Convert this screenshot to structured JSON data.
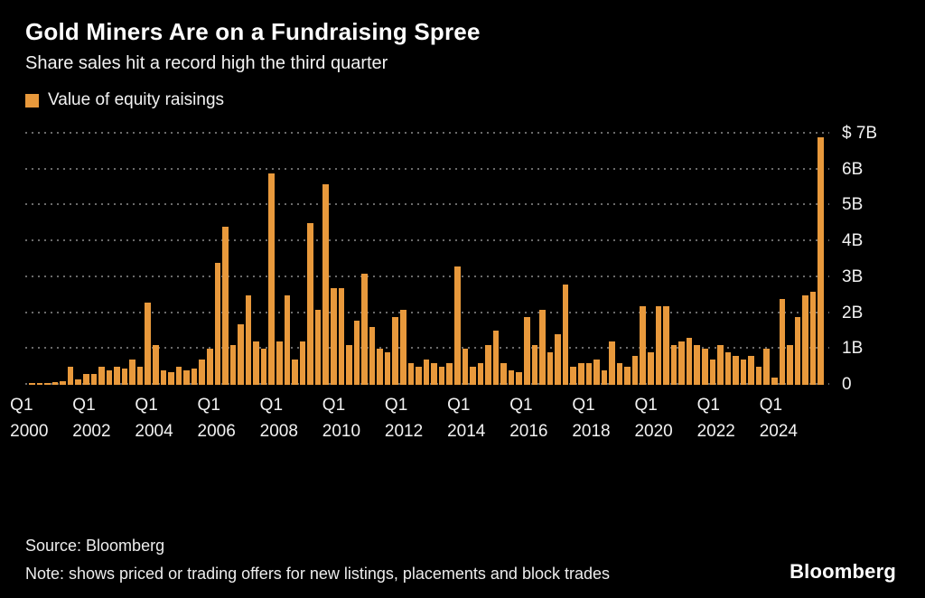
{
  "header": {
    "title": "Gold Miners Are on a Fundraising Spree",
    "subtitle": "Share sales hit a record high the third quarter"
  },
  "legend": {
    "label": "Value of equity raisings",
    "color": "#E8993C"
  },
  "chart_data": {
    "type": "bar",
    "title": "Value of equity raisings",
    "xlabel": "",
    "ylabel": "$B",
    "ylim": [
      0,
      7
    ],
    "grid": "horizontal-dotted",
    "legend_position": "top-left",
    "bar_color": "#E8993C",
    "start_quarter": "Q1 2000",
    "end_quarter": "Q3 2025",
    "values": [
      0.05,
      0.05,
      0.06,
      0.08,
      0.1,
      0.5,
      0.15,
      0.3,
      0.3,
      0.5,
      0.4,
      0.5,
      0.45,
      0.7,
      0.5,
      2.3,
      1.1,
      0.4,
      0.35,
      0.5,
      0.4,
      0.45,
      0.7,
      1.0,
      3.4,
      4.4,
      1.1,
      1.7,
      2.5,
      1.2,
      1.0,
      5.9,
      1.2,
      2.5,
      0.7,
      1.2,
      4.5,
      2.1,
      5.6,
      2.7,
      2.7,
      1.1,
      1.8,
      3.1,
      1.6,
      1.0,
      0.9,
      1.9,
      2.1,
      0.6,
      0.5,
      0.7,
      0.6,
      0.5,
      0.6,
      3.3,
      1.0,
      0.5,
      0.6,
      1.1,
      1.5,
      0.6,
      0.4,
      0.35,
      1.9,
      1.1,
      2.1,
      0.9,
      1.4,
      2.8,
      0.5,
      0.6,
      0.6,
      0.7,
      0.4,
      1.2,
      0.6,
      0.5,
      0.8,
      2.2,
      0.9,
      2.2,
      2.2,
      1.1,
      1.2,
      1.3,
      1.1,
      1.0,
      0.7,
      1.1,
      0.9,
      0.8,
      0.7,
      0.8,
      0.5,
      1.0,
      0.2,
      2.4,
      1.1,
      1.9,
      2.5,
      2.6,
      6.9
    ],
    "y_ticks": [
      {
        "value": 7,
        "label": "$ 7B"
      },
      {
        "value": 6,
        "label": "6B"
      },
      {
        "value": 5,
        "label": "5B"
      },
      {
        "value": 4,
        "label": "4B"
      },
      {
        "value": 3,
        "label": "3B"
      },
      {
        "value": 2,
        "label": "2B"
      },
      {
        "value": 1,
        "label": "1B"
      },
      {
        "value": 0,
        "label": "0"
      }
    ],
    "x_ticks": [
      {
        "index": 0,
        "quarter": "Q1",
        "year": "2000"
      },
      {
        "index": 8,
        "quarter": "Q1",
        "year": "2002"
      },
      {
        "index": 16,
        "quarter": "Q1",
        "year": "2004"
      },
      {
        "index": 24,
        "quarter": "Q1",
        "year": "2006"
      },
      {
        "index": 32,
        "quarter": "Q1",
        "year": "2008"
      },
      {
        "index": 40,
        "quarter": "Q1",
        "year": "2010"
      },
      {
        "index": 48,
        "quarter": "Q1",
        "year": "2012"
      },
      {
        "index": 56,
        "quarter": "Q1",
        "year": "2014"
      },
      {
        "index": 64,
        "quarter": "Q1",
        "year": "2016"
      },
      {
        "index": 72,
        "quarter": "Q1",
        "year": "2018"
      },
      {
        "index": 80,
        "quarter": "Q1",
        "year": "2020"
      },
      {
        "index": 88,
        "quarter": "Q1",
        "year": "2022"
      },
      {
        "index": 96,
        "quarter": "Q1",
        "year": "2024"
      }
    ]
  },
  "footer": {
    "source": "Source: Bloomberg",
    "note": "Note: shows priced or trading offers for new listings, placements and block trades",
    "logo": "Bloomberg"
  }
}
